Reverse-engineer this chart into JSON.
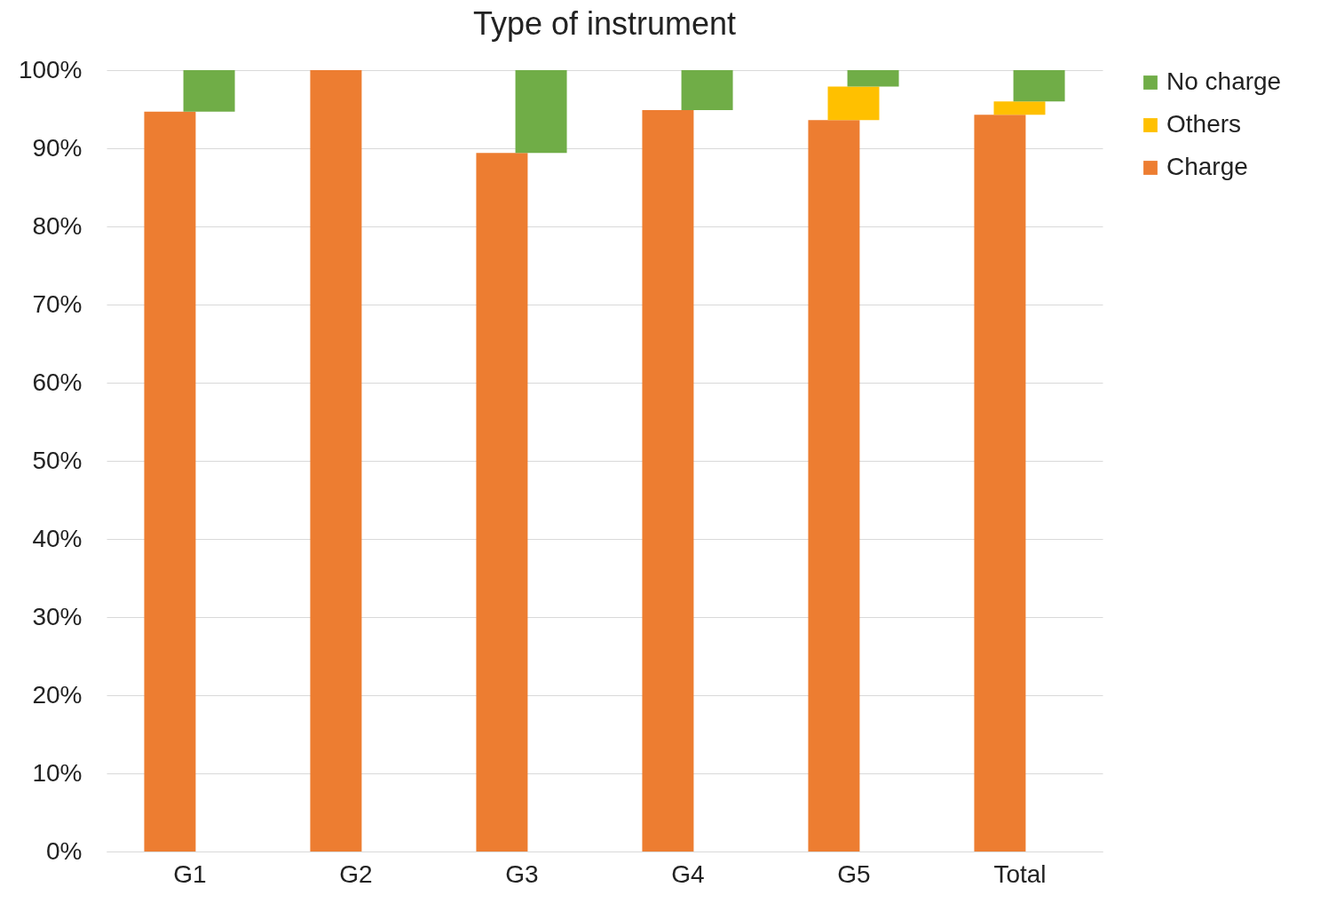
{
  "chart_data": {
    "type": "bar",
    "title": "Type of instrument",
    "categories": [
      "G1",
      "G2",
      "G3",
      "G4",
      "G5",
      "Total"
    ],
    "stacked": true,
    "series": [
      {
        "name": "Charge",
        "color": "#ed7d31",
        "values": [
          94.7,
          100,
          89.4,
          94.9,
          93.6,
          94.3
        ]
      },
      {
        "name": "Others",
        "color": "#ffc000",
        "values": [
          null,
          null,
          null,
          null,
          4.3,
          1.7
        ]
      },
      {
        "name": "No charge",
        "color": "#70ad47",
        "values": [
          5.3,
          null,
          10.6,
          5.1,
          2.1,
          4.0
        ]
      }
    ],
    "ylim": [
      0,
      100
    ],
    "yticks": [
      {
        "value": 0,
        "label": "0%"
      },
      {
        "value": 10,
        "label": "10%"
      },
      {
        "value": 20,
        "label": "20%"
      },
      {
        "value": 30,
        "label": "30%"
      },
      {
        "value": 40,
        "label": "40%"
      },
      {
        "value": 50,
        "label": "50%"
      },
      {
        "value": 60,
        "label": "60%"
      },
      {
        "value": 70,
        "label": "70%"
      },
      {
        "value": 80,
        "label": "80%"
      },
      {
        "value": 90,
        "label": "90%"
      },
      {
        "value": 100,
        "label": "100%"
      }
    ],
    "grid": "y",
    "legend": "right"
  }
}
